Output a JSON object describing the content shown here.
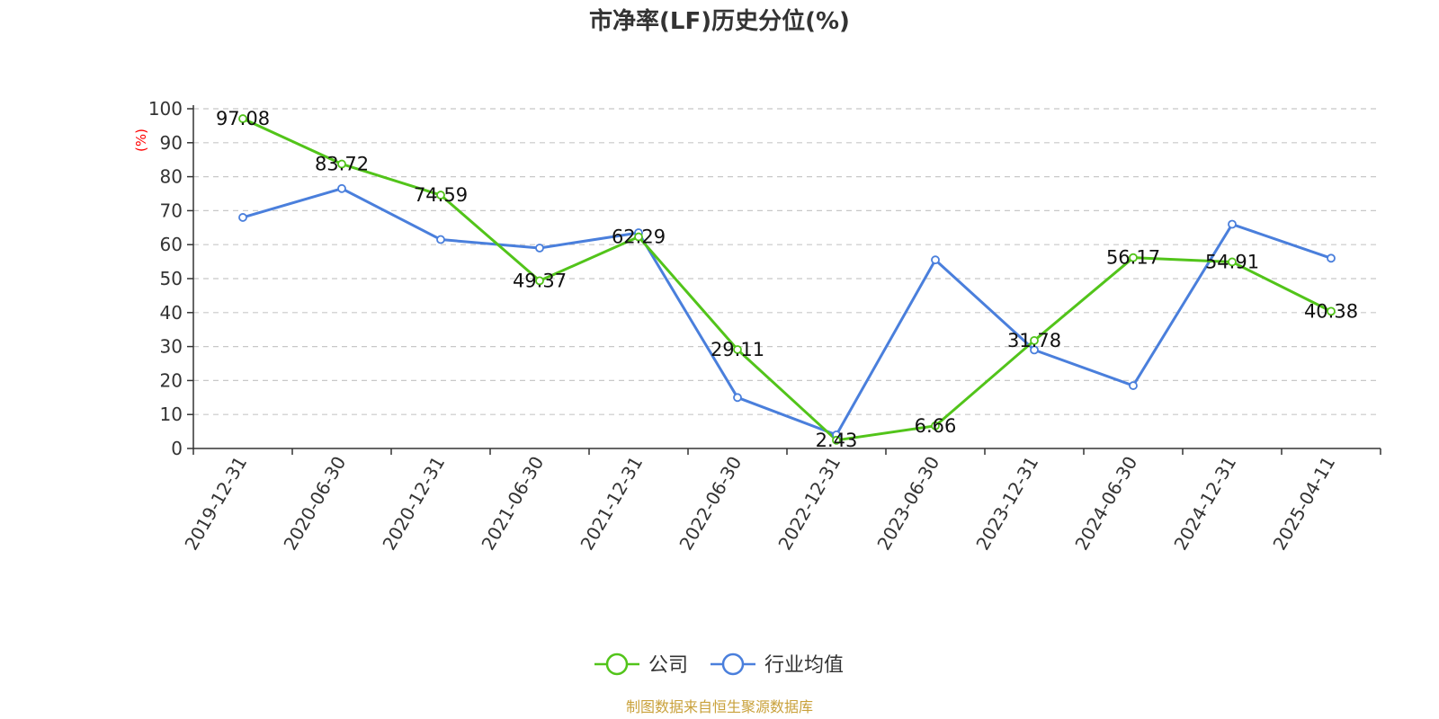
{
  "chart_data": {
    "type": "line",
    "title": "市净率(LF)历史分位(%)",
    "ylabel": "(%)",
    "ylim": [
      0,
      100
    ],
    "yticks": [
      0,
      10,
      20,
      30,
      40,
      50,
      60,
      70,
      80,
      90,
      100
    ],
    "grid": true,
    "legend_position": "bottom",
    "categories": [
      "2019-12-31",
      "2020-06-30",
      "2020-12-31",
      "2021-06-30",
      "2021-12-31",
      "2022-06-30",
      "2022-12-31",
      "2023-06-30",
      "2023-12-31",
      "2024-06-30",
      "2024-12-31",
      "2025-04-11"
    ],
    "series": [
      {
        "name": "公司",
        "color": "#52c41a",
        "show_labels": true,
        "values": [
          97.08,
          83.72,
          74.59,
          49.37,
          62.29,
          29.11,
          2.43,
          6.66,
          31.78,
          56.17,
          54.91,
          40.38
        ],
        "labels": [
          "97.08",
          "83.72",
          "74.59",
          "49.37",
          "62.29",
          "29.11",
          "2.43",
          "6.66",
          "31.78",
          "56.17",
          "54.91",
          "40.38"
        ]
      },
      {
        "name": "行业均值",
        "color": "#4a7fdc",
        "show_labels": false,
        "values": [
          68,
          76.5,
          61.5,
          59,
          63.5,
          15,
          4,
          55.5,
          29,
          18.5,
          66,
          56
        ]
      }
    ],
    "source": "制图数据来自恒生聚源数据库"
  }
}
